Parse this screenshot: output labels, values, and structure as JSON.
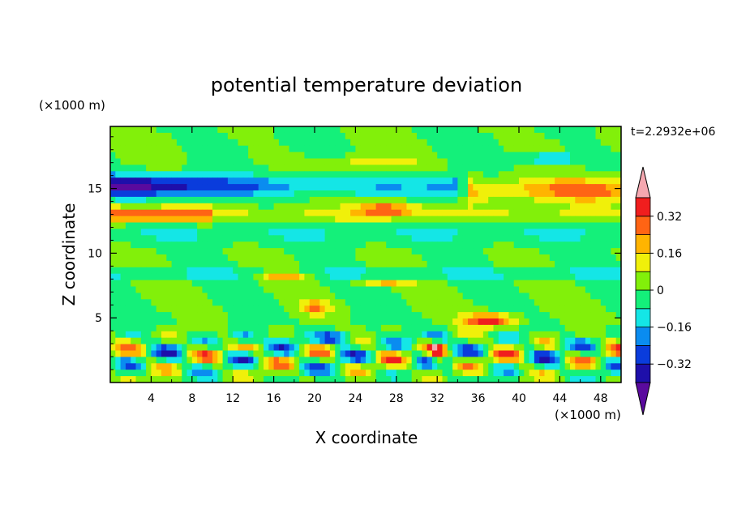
{
  "chart_data": {
    "type": "heatmap",
    "title": "potential temperature deviation",
    "xlabel": "X coordinate",
    "ylabel": "Z coordinate",
    "x_unit_label": "(×1000 m)",
    "y_unit_label": "(×1000 m)",
    "time_label": "t=2.2932e+06",
    "xlim": [
      0,
      50
    ],
    "ylim": [
      0,
      19.8
    ],
    "x_ticks": [
      4,
      8,
      12,
      16,
      20,
      24,
      28,
      32,
      36,
      40,
      44,
      48
    ],
    "y_ticks": [
      5,
      10,
      15
    ],
    "colorbar": {
      "levels": [
        -0.4,
        -0.32,
        -0.24,
        -0.16,
        -0.08,
        0,
        0.08,
        0.16,
        0.24,
        0.32,
        0.4
      ],
      "colors": [
        "#5a0a9e",
        "#1e0faa",
        "#0a3cdc",
        "#0a8cf0",
        "#14e6e6",
        "#14f07a",
        "#82f00a",
        "#f0f00a",
        "#ffb400",
        "#ff6414",
        "#f01e1e",
        "#f5a8b0"
      ],
      "labels": [
        "0.32",
        "0.16",
        "0",
        "-0.16",
        "-0.32"
      ],
      "label_values": [
        0.32,
        0.16,
        0,
        -0.16,
        -0.32
      ],
      "extend": "both"
    },
    "field": {
      "description_rows_top_to_bottom": true,
      "nx": 100,
      "ny": 40
    }
  }
}
